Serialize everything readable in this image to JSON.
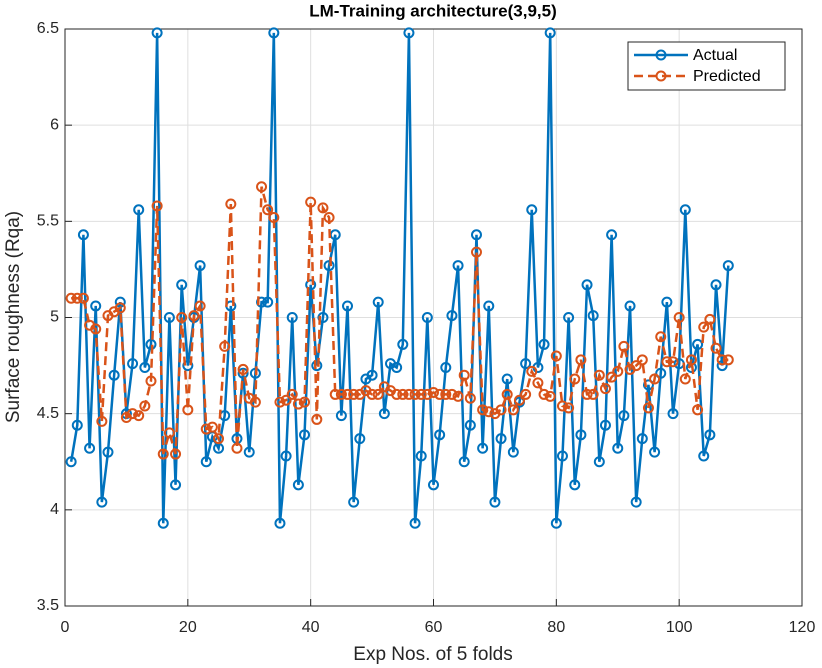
{
  "chart_data": {
    "type": "line",
    "title": "LM-Training architecture(3,9,5)",
    "x_label": "Exp Nos. of 5 folds",
    "y_label": "Surface roughness (Rqa)",
    "x": [
      1,
      2,
      3,
      4,
      5,
      6,
      7,
      8,
      9,
      10,
      11,
      12,
      13,
      14,
      15,
      16,
      17,
      18,
      19,
      20,
      21,
      22,
      23,
      24,
      25,
      26,
      27,
      28,
      29,
      30,
      31,
      32,
      33,
      34,
      35,
      36,
      37,
      38,
      39,
      40,
      41,
      42,
      43,
      44,
      45,
      46,
      47,
      48,
      49,
      50,
      51,
      52,
      53,
      54,
      55,
      56,
      57,
      58,
      59,
      60,
      61,
      62,
      63,
      64,
      65,
      66,
      67,
      68,
      69,
      70,
      71,
      72,
      73,
      74,
      75,
      76,
      77,
      78,
      79,
      80,
      81,
      82,
      83,
      84,
      85,
      86,
      87,
      88,
      89,
      90,
      91,
      92,
      93,
      94,
      95,
      96,
      97,
      98,
      99,
      100,
      101,
      102,
      103,
      104,
      105,
      106,
      107,
      108
    ],
    "series": [
      {
        "name": "Actual",
        "color": "#0072bd",
        "dash": false,
        "values": [
          4.25,
          4.44,
          5.43,
          4.32,
          5.06,
          4.04,
          4.3,
          4.7,
          5.08,
          4.5,
          4.76,
          5.56,
          4.74,
          4.86,
          6.48,
          3.93,
          5.0,
          4.13,
          5.17,
          4.75,
          5.0,
          5.27,
          4.25,
          4.38,
          4.32,
          4.49,
          5.06,
          4.37,
          4.71,
          4.3,
          4.71,
          5.08,
          5.08,
          6.48,
          3.93,
          4.28,
          5.0,
          4.13,
          4.39,
          5.17,
          4.75,
          5.0,
          5.27,
          5.43,
          4.49,
          5.06,
          4.04,
          4.37,
          4.68,
          4.7,
          5.08,
          4.5,
          4.76,
          4.74,
          4.86,
          6.48,
          3.93,
          4.28,
          5.0,
          4.13,
          4.39,
          4.74,
          5.01,
          5.27,
          4.25,
          4.44,
          5.43,
          4.32,
          5.06,
          4.04,
          4.37,
          4.68,
          4.3,
          4.56,
          4.76,
          5.56,
          4.74,
          4.86,
          6.48,
          3.93,
          4.28,
          5.0,
          4.13,
          4.39,
          5.17,
          5.01,
          4.25,
          4.44,
          5.43,
          4.32,
          4.49,
          5.06,
          4.04,
          4.37,
          4.65,
          4.3,
          4.71,
          5.08,
          4.5,
          4.76,
          5.56,
          4.74,
          4.86,
          4.28,
          4.39,
          5.17,
          4.75,
          5.27
        ]
      },
      {
        "name": "Predicted",
        "color": "#d95319",
        "dash": true,
        "values": [
          5.1,
          5.1,
          5.1,
          4.96,
          4.94,
          4.46,
          5.01,
          5.03,
          5.05,
          4.48,
          4.5,
          4.49,
          4.54,
          4.67,
          5.58,
          4.29,
          4.4,
          4.29,
          5.0,
          4.52,
          5.01,
          5.06,
          4.42,
          4.43,
          4.37,
          4.85,
          5.59,
          4.32,
          4.73,
          4.58,
          4.56,
          5.68,
          5.56,
          5.52,
          4.56,
          4.57,
          4.6,
          4.55,
          4.56,
          5.6,
          4.47,
          5.57,
          5.52,
          4.6,
          4.6,
          4.6,
          4.6,
          4.6,
          4.62,
          4.6,
          4.6,
          4.64,
          4.62,
          4.6,
          4.6,
          4.6,
          4.6,
          4.6,
          4.6,
          4.61,
          4.6,
          4.6,
          4.6,
          4.59,
          4.7,
          4.58,
          5.34,
          4.52,
          4.51,
          4.5,
          4.52,
          4.6,
          4.52,
          4.57,
          4.6,
          4.72,
          4.66,
          4.6,
          4.59,
          4.8,
          4.54,
          4.53,
          4.68,
          4.78,
          4.6,
          4.6,
          4.7,
          4.63,
          4.69,
          4.72,
          4.85,
          4.73,
          4.75,
          4.78,
          4.53,
          4.68,
          4.9,
          4.77,
          4.77,
          5.0,
          4.68,
          4.78,
          4.52,
          4.95,
          4.99,
          4.84,
          4.78,
          4.78
        ]
      }
    ],
    "xlim": [
      0,
      120
    ],
    "xticks": [
      0,
      20,
      40,
      60,
      80,
      100,
      120
    ],
    "ylim": [
      3.5,
      6.5
    ],
    "yticks": [
      3.5,
      4,
      4.5,
      5,
      5.5,
      6,
      6.5
    ],
    "grid": true,
    "legend": "northeast"
  }
}
